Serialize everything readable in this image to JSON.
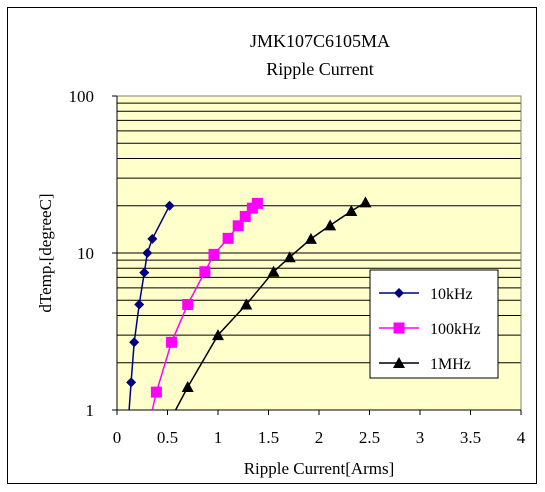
{
  "chart_data": {
    "type": "line",
    "title": "JMK107C6105MA",
    "subtitle": "Ripple Current",
    "xlabel": "Ripple Current[Arms]",
    "ylabel": "dTemp.[degreeC]",
    "xlim": [
      0,
      4
    ],
    "ylim": [
      1,
      100
    ],
    "yscale": "log",
    "grid": true,
    "legend_position": "lower-right",
    "plot_background": "#FFFFCC",
    "x_ticks": [
      "0",
      "0.5",
      "1",
      "1.5",
      "2",
      "2.5",
      "3",
      "3.5",
      "4"
    ],
    "y_ticks": [
      "1",
      "10",
      "100"
    ],
    "series": [
      {
        "name": "10kHz",
        "color": "#000080",
        "marker": "diamond",
        "points": [
          [
            0.12,
            1
          ],
          [
            0.14,
            1.5
          ],
          [
            0.17,
            2.7
          ],
          [
            0.22,
            4.7
          ],
          [
            0.27,
            7.5
          ],
          [
            0.3,
            10
          ],
          [
            0.35,
            12.3
          ],
          [
            0.52,
            20
          ]
        ]
      },
      {
        "name": "100kHz",
        "color": "#FF00FF",
        "marker": "square",
        "points": [
          [
            0.35,
            1
          ],
          [
            0.39,
            1.3
          ],
          [
            0.54,
            2.7
          ],
          [
            0.7,
            4.7
          ],
          [
            0.87,
            7.6
          ],
          [
            0.96,
            9.8
          ],
          [
            1.1,
            12.4
          ],
          [
            1.2,
            14.9
          ],
          [
            1.27,
            17.1
          ],
          [
            1.34,
            19.3
          ],
          [
            1.39,
            20.7
          ]
        ]
      },
      {
        "name": "1MHz",
        "color": "#000000",
        "marker": "triangle",
        "points": [
          [
            0.58,
            1
          ],
          [
            0.7,
            1.4
          ],
          [
            1.0,
            3.0
          ],
          [
            1.28,
            4.7
          ],
          [
            1.55,
            7.6
          ],
          [
            1.71,
            9.4
          ],
          [
            1.92,
            12.3
          ],
          [
            2.11,
            15
          ],
          [
            2.32,
            18.5
          ],
          [
            2.46,
            21
          ]
        ]
      }
    ]
  }
}
